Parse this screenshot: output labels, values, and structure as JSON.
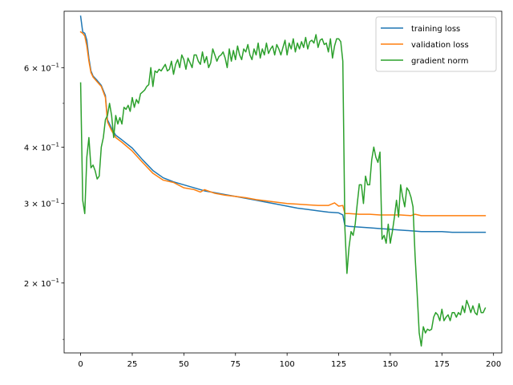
{
  "chart_data": {
    "type": "line",
    "title": "",
    "xlabel": "",
    "ylabel": "",
    "xlim": [
      -8,
      204
    ],
    "ylim": [
      0.14,
      0.8
    ],
    "yscale": "log",
    "grid": false,
    "legend_position": "top-right",
    "x_ticks": [
      {
        "value": 0,
        "label": "0"
      },
      {
        "value": 25,
        "label": "25"
      },
      {
        "value": 50,
        "label": "50"
      },
      {
        "value": 75,
        "label": "75"
      },
      {
        "value": 100,
        "label": "100"
      },
      {
        "value": 125,
        "label": "125"
      },
      {
        "value": 150,
        "label": "150"
      },
      {
        "value": 175,
        "label": "175"
      },
      {
        "value": 200,
        "label": "200"
      }
    ],
    "y_ticks": [
      {
        "value": 0.2,
        "label": "2 × 10",
        "exp": "−1"
      },
      {
        "value": 0.3,
        "label": "3 × 10",
        "exp": "−1"
      },
      {
        "value": 0.4,
        "label": "4 × 10",
        "exp": "−1"
      },
      {
        "value": 0.6,
        "label": "6 × 10",
        "exp": "−1"
      }
    ],
    "y_minor_ticks": [
      0.15,
      0.5
    ],
    "series": [
      {
        "name": "training loss",
        "color": "#1f77b4",
        "points": [
          [
            0,
            0.78
          ],
          [
            1,
            0.72
          ],
          [
            2,
            0.715
          ],
          [
            3,
            0.69
          ],
          [
            4,
            0.63
          ],
          [
            5,
            0.59
          ],
          [
            6,
            0.575
          ],
          [
            8,
            0.562
          ],
          [
            10,
            0.548
          ],
          [
            12,
            0.52
          ],
          [
            13,
            0.46
          ],
          [
            15,
            0.44
          ],
          [
            17,
            0.425
          ],
          [
            20,
            0.415
          ],
          [
            25,
            0.398
          ],
          [
            30,
            0.375
          ],
          [
            35,
            0.355
          ],
          [
            40,
            0.342
          ],
          [
            45,
            0.335
          ],
          [
            50,
            0.33
          ],
          [
            55,
            0.325
          ],
          [
            60,
            0.32
          ],
          [
            65,
            0.317
          ],
          [
            70,
            0.314
          ],
          [
            75,
            0.311
          ],
          [
            80,
            0.308
          ],
          [
            85,
            0.305
          ],
          [
            90,
            0.302
          ],
          [
            95,
            0.299
          ],
          [
            100,
            0.296
          ],
          [
            105,
            0.293
          ],
          [
            110,
            0.291
          ],
          [
            115,
            0.289
          ],
          [
            120,
            0.287
          ],
          [
            125,
            0.286
          ],
          [
            127,
            0.283
          ],
          [
            128,
            0.268
          ],
          [
            130,
            0.267
          ],
          [
            135,
            0.266
          ],
          [
            140,
            0.265
          ],
          [
            145,
            0.264
          ],
          [
            150,
            0.263
          ],
          [
            155,
            0.262
          ],
          [
            160,
            0.261
          ],
          [
            165,
            0.26
          ],
          [
            170,
            0.26
          ],
          [
            175,
            0.26
          ],
          [
            180,
            0.259
          ],
          [
            185,
            0.259
          ],
          [
            190,
            0.259
          ],
          [
            196,
            0.259
          ]
        ]
      },
      {
        "name": "validation loss",
        "color": "#ff7f0e",
        "points": [
          [
            0,
            0.72
          ],
          [
            1,
            0.715
          ],
          [
            2,
            0.705
          ],
          [
            3,
            0.67
          ],
          [
            4,
            0.62
          ],
          [
            5,
            0.585
          ],
          [
            6,
            0.572
          ],
          [
            8,
            0.558
          ],
          [
            10,
            0.545
          ],
          [
            12,
            0.515
          ],
          [
            13,
            0.455
          ],
          [
            15,
            0.435
          ],
          [
            17,
            0.42
          ],
          [
            20,
            0.41
          ],
          [
            25,
            0.392
          ],
          [
            30,
            0.37
          ],
          [
            35,
            0.35
          ],
          [
            40,
            0.338
          ],
          [
            45,
            0.334
          ],
          [
            50,
            0.325
          ],
          [
            55,
            0.322
          ],
          [
            58,
            0.318
          ],
          [
            60,
            0.322
          ],
          [
            65,
            0.316
          ],
          [
            70,
            0.313
          ],
          [
            75,
            0.311
          ],
          [
            80,
            0.309
          ],
          [
            85,
            0.306
          ],
          [
            90,
            0.304
          ],
          [
            95,
            0.302
          ],
          [
            100,
            0.3
          ],
          [
            105,
            0.299
          ],
          [
            110,
            0.298
          ],
          [
            115,
            0.297
          ],
          [
            120,
            0.297
          ],
          [
            123,
            0.301
          ],
          [
            125,
            0.296
          ],
          [
            127,
            0.297
          ],
          [
            128,
            0.285
          ],
          [
            130,
            0.285
          ],
          [
            135,
            0.284
          ],
          [
            140,
            0.284
          ],
          [
            145,
            0.283
          ],
          [
            150,
            0.283
          ],
          [
            155,
            0.283
          ],
          [
            160,
            0.282
          ],
          [
            162,
            0.284
          ],
          [
            165,
            0.282
          ],
          [
            170,
            0.282
          ],
          [
            175,
            0.282
          ],
          [
            180,
            0.282
          ],
          [
            185,
            0.282
          ],
          [
            190,
            0.282
          ],
          [
            196,
            0.282
          ]
        ]
      },
      {
        "name": "gradient norm",
        "color": "#2ca02c",
        "points": [
          [
            0,
            0.555
          ],
          [
            1,
            0.305
          ],
          [
            2,
            0.285
          ],
          [
            3,
            0.38
          ],
          [
            4,
            0.42
          ],
          [
            5,
            0.36
          ],
          [
            6,
            0.365
          ],
          [
            7,
            0.355
          ],
          [
            8,
            0.34
          ],
          [
            9,
            0.345
          ],
          [
            10,
            0.4
          ],
          [
            11,
            0.42
          ],
          [
            12,
            0.46
          ],
          [
            13,
            0.47
          ],
          [
            14,
            0.5
          ],
          [
            15,
            0.47
          ],
          [
            16,
            0.42
          ],
          [
            17,
            0.47
          ],
          [
            18,
            0.45
          ],
          [
            19,
            0.465
          ],
          [
            20,
            0.45
          ],
          [
            21,
            0.49
          ],
          [
            22,
            0.485
          ],
          [
            23,
            0.495
          ],
          [
            24,
            0.48
          ],
          [
            25,
            0.515
          ],
          [
            26,
            0.49
          ],
          [
            27,
            0.51
          ],
          [
            28,
            0.5
          ],
          [
            29,
            0.525
          ],
          [
            30,
            0.53
          ],
          [
            31,
            0.535
          ],
          [
            32,
            0.545
          ],
          [
            33,
            0.55
          ],
          [
            34,
            0.6
          ],
          [
            35,
            0.545
          ],
          [
            36,
            0.59
          ],
          [
            37,
            0.585
          ],
          [
            38,
            0.595
          ],
          [
            39,
            0.59
          ],
          [
            40,
            0.6
          ],
          [
            41,
            0.61
          ],
          [
            42,
            0.59
          ],
          [
            43,
            0.595
          ],
          [
            44,
            0.62
          ],
          [
            45,
            0.58
          ],
          [
            46,
            0.61
          ],
          [
            47,
            0.625
          ],
          [
            48,
            0.6
          ],
          [
            49,
            0.64
          ],
          [
            50,
            0.625
          ],
          [
            51,
            0.595
          ],
          [
            52,
            0.63
          ],
          [
            53,
            0.615
          ],
          [
            54,
            0.6
          ],
          [
            55,
            0.64
          ],
          [
            56,
            0.64
          ],
          [
            57,
            0.62
          ],
          [
            58,
            0.61
          ],
          [
            59,
            0.65
          ],
          [
            60,
            0.615
          ],
          [
            61,
            0.635
          ],
          [
            62,
            0.6
          ],
          [
            63,
            0.615
          ],
          [
            64,
            0.66
          ],
          [
            65,
            0.64
          ],
          [
            66,
            0.62
          ],
          [
            67,
            0.635
          ],
          [
            68,
            0.64
          ],
          [
            69,
            0.65
          ],
          [
            70,
            0.63
          ],
          [
            71,
            0.6
          ],
          [
            72,
            0.66
          ],
          [
            73,
            0.62
          ],
          [
            74,
            0.655
          ],
          [
            75,
            0.625
          ],
          [
            76,
            0.67
          ],
          [
            77,
            0.64
          ],
          [
            78,
            0.625
          ],
          [
            79,
            0.66
          ],
          [
            80,
            0.65
          ],
          [
            81,
            0.675
          ],
          [
            82,
            0.64
          ],
          [
            83,
            0.625
          ],
          [
            84,
            0.66
          ],
          [
            85,
            0.64
          ],
          [
            86,
            0.68
          ],
          [
            87,
            0.63
          ],
          [
            88,
            0.66
          ],
          [
            89,
            0.64
          ],
          [
            90,
            0.68
          ],
          [
            91,
            0.645
          ],
          [
            92,
            0.66
          ],
          [
            93,
            0.67
          ],
          [
            94,
            0.64
          ],
          [
            95,
            0.675
          ],
          [
            96,
            0.66
          ],
          [
            97,
            0.64
          ],
          [
            98,
            0.665
          ],
          [
            99,
            0.69
          ],
          [
            100,
            0.64
          ],
          [
            101,
            0.68
          ],
          [
            102,
            0.66
          ],
          [
            103,
            0.695
          ],
          [
            104,
            0.65
          ],
          [
            105,
            0.68
          ],
          [
            106,
            0.66
          ],
          [
            107,
            0.685
          ],
          [
            108,
            0.665
          ],
          [
            109,
            0.7
          ],
          [
            110,
            0.66
          ],
          [
            111,
            0.685
          ],
          [
            112,
            0.69
          ],
          [
            113,
            0.68
          ],
          [
            114,
            0.71
          ],
          [
            115,
            0.665
          ],
          [
            116,
            0.69
          ],
          [
            117,
            0.695
          ],
          [
            118,
            0.675
          ],
          [
            119,
            0.68
          ],
          [
            120,
            0.65
          ],
          [
            121,
            0.695
          ],
          [
            122,
            0.63
          ],
          [
            123,
            0.67
          ],
          [
            124,
            0.695
          ],
          [
            125,
            0.695
          ],
          [
            126,
            0.685
          ],
          [
            127,
            0.62
          ],
          [
            128,
            0.265
          ],
          [
            129,
            0.21
          ],
          [
            130,
            0.24
          ],
          [
            131,
            0.26
          ],
          [
            132,
            0.255
          ],
          [
            133,
            0.27
          ],
          [
            134,
            0.3
          ],
          [
            135,
            0.33
          ],
          [
            136,
            0.33
          ],
          [
            137,
            0.3
          ],
          [
            138,
            0.345
          ],
          [
            139,
            0.33
          ],
          [
            140,
            0.33
          ],
          [
            141,
            0.375
          ],
          [
            142,
            0.4
          ],
          [
            143,
            0.38
          ],
          [
            144,
            0.37
          ],
          [
            145,
            0.39
          ],
          [
            146,
            0.25
          ],
          [
            147,
            0.255
          ],
          [
            148,
            0.245
          ],
          [
            149,
            0.27
          ],
          [
            150,
            0.245
          ],
          [
            151,
            0.26
          ],
          [
            152,
            0.28
          ],
          [
            153,
            0.305
          ],
          [
            154,
            0.28
          ],
          [
            155,
            0.33
          ],
          [
            156,
            0.31
          ],
          [
            157,
            0.295
          ],
          [
            158,
            0.325
          ],
          [
            159,
            0.32
          ],
          [
            160,
            0.31
          ],
          [
            161,
            0.295
          ],
          [
            162,
            0.23
          ],
          [
            163,
            0.19
          ],
          [
            164,
            0.155
          ],
          [
            165,
            0.145
          ],
          [
            166,
            0.16
          ],
          [
            167,
            0.155
          ],
          [
            168,
            0.158
          ],
          [
            169,
            0.157
          ],
          [
            170,
            0.158
          ],
          [
            171,
            0.168
          ],
          [
            172,
            0.172
          ],
          [
            173,
            0.17
          ],
          [
            174,
            0.165
          ],
          [
            175,
            0.175
          ],
          [
            176,
            0.165
          ],
          [
            177,
            0.168
          ],
          [
            178,
            0.17
          ],
          [
            179,
            0.165
          ],
          [
            180,
            0.172
          ],
          [
            181,
            0.172
          ],
          [
            182,
            0.168
          ],
          [
            183,
            0.172
          ],
          [
            184,
            0.17
          ],
          [
            185,
            0.178
          ],
          [
            186,
            0.172
          ],
          [
            187,
            0.183
          ],
          [
            188,
            0.178
          ],
          [
            189,
            0.172
          ],
          [
            190,
            0.178
          ],
          [
            191,
            0.172
          ],
          [
            192,
            0.17
          ],
          [
            193,
            0.18
          ],
          [
            194,
            0.172
          ],
          [
            195,
            0.172
          ],
          [
            196,
            0.176
          ]
        ]
      }
    ]
  }
}
